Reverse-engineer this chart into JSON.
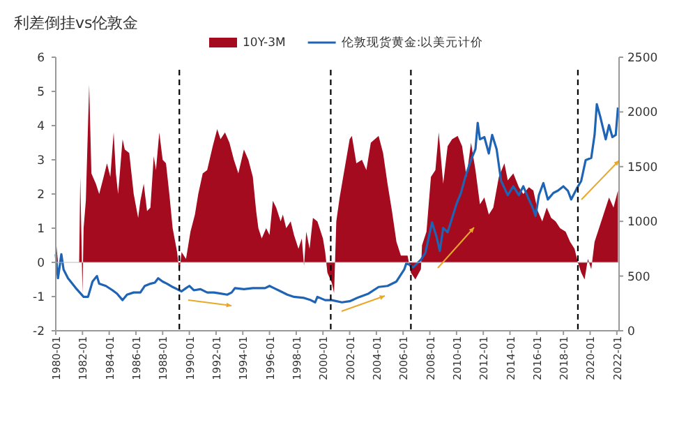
{
  "chart_data": {
    "type": "area",
    "title": "利差倒挂vs伦敦金",
    "legend": "top",
    "xlim": [
      "1980-01",
      "2022-03"
    ],
    "xticks": [
      "1980-01",
      "1982-01",
      "1984-01",
      "1986-01",
      "1988-01",
      "1990-01",
      "1992-01",
      "1994-01",
      "1996-01",
      "1998-01",
      "2000-01",
      "2002-01",
      "2004-01",
      "2006-01",
      "2008-01",
      "2010-01",
      "2012-01",
      "2014-01",
      "2016-01",
      "2018-01",
      "2020-01",
      "2022-01"
    ],
    "ylim": [
      -2,
      6
    ],
    "yticks": [
      -2,
      -1,
      0,
      1,
      2,
      3,
      4,
      5,
      6
    ],
    "y2lim": [
      0,
      2500
    ],
    "y2ticks": [
      0,
      500,
      1000,
      1500,
      2000,
      2500
    ],
    "ref_lines": [
      {
        "axis": "x",
        "value": "1989-04",
        "color": "#000000",
        "line_style": "dashed"
      },
      {
        "axis": "x",
        "value": "2000-08",
        "color": "#000000",
        "line_style": "dashed"
      },
      {
        "axis": "x",
        "value": "2006-08",
        "color": "#000000",
        "line_style": "dashed"
      },
      {
        "axis": "x",
        "value": "2019-02",
        "color": "#000000",
        "line_style": "dashed"
      }
    ],
    "series": [
      {
        "name": "10Y-3M",
        "axis": "y",
        "color": "#a50b1e",
        "x": [
          "1980-01",
          "1980-03",
          "1981-10",
          "1981-11",
          "1982-01",
          "1982-02",
          "1982-04",
          "1982-07",
          "1982-09",
          "1983-01",
          "1983-04",
          "1983-08",
          "1983-11",
          "1984-02",
          "1984-05",
          "1984-07",
          "1984-09",
          "1985-01",
          "1985-03",
          "1985-07",
          "1985-11",
          "1986-03",
          "1986-05",
          "1986-08",
          "1986-11",
          "1987-02",
          "1987-05",
          "1987-07",
          "1987-10",
          "1988-01",
          "1988-04",
          "1988-07",
          "1988-10",
          "1989-02",
          "1989-04",
          "1989-06",
          "1989-10",
          "1990-02",
          "1990-06",
          "1990-09",
          "1991-01",
          "1991-05",
          "1991-10",
          "1992-02",
          "1992-05",
          "1992-09",
          "1993-01",
          "1993-05",
          "1993-09",
          "1994-02",
          "1994-06",
          "1994-10",
          "1995-01",
          "1995-03",
          "1995-06",
          "1995-10",
          "1996-01",
          "1996-04",
          "1996-07",
          "1996-11",
          "1997-01",
          "1997-04",
          "1997-08",
          "1997-11",
          "1998-03",
          "1998-06",
          "1998-08",
          "1998-10",
          "1999-01",
          "1999-04",
          "1999-08",
          "2000-01",
          "2000-03",
          "2000-05",
          "2000-09",
          "2000-11",
          "2001-01",
          "2001-04",
          "2002-01",
          "2002-03",
          "2002-07",
          "2002-12",
          "2003-04",
          "2003-08",
          "2004-03",
          "2004-07",
          "2004-11",
          "2005-03",
          "2005-07",
          "2005-11",
          "2006-05",
          "2006-08",
          "2006-12",
          "2007-05",
          "2007-06",
          "2007-10",
          "2008-02",
          "2008-06",
          "2008-09",
          "2009-01",
          "2009-05",
          "2009-09",
          "2010-02",
          "2010-06",
          "2010-10",
          "2011-02",
          "2011-06",
          "2011-10",
          "2012-02",
          "2012-06",
          "2012-10",
          "2013-03",
          "2013-08",
          "2013-11",
          "2014-04",
          "2014-09",
          "2015-01",
          "2015-06",
          "2015-10",
          "2016-02",
          "2016-06",
          "2016-10",
          "2017-02",
          "2017-06",
          "2017-10",
          "2018-03",
          "2018-07",
          "2018-11",
          "2019-02",
          "2019-05",
          "2019-08",
          "2019-11",
          "2020-02",
          "2020-05",
          "2020-09",
          "2021-02",
          "2021-06",
          "2021-10",
          "2022-02"
        ],
        "values": [
          0.7,
          0,
          0,
          2.5,
          -0.9,
          1.0,
          1.8,
          5.2,
          2.6,
          2.3,
          2.0,
          2.5,
          2.9,
          2.5,
          3.8,
          2.6,
          2.0,
          3.6,
          3.3,
          3.2,
          2.0,
          1.3,
          1.8,
          2.3,
          1.5,
          1.6,
          3.1,
          2.7,
          3.8,
          3.0,
          2.9,
          2.0,
          1.0,
          0.3,
          -0.3,
          0.3,
          0.1,
          0.9,
          1.4,
          2.0,
          2.6,
          2.7,
          3.4,
          3.9,
          3.6,
          3.8,
          3.5,
          3.0,
          2.6,
          3.3,
          3.0,
          2.5,
          1.5,
          1.0,
          0.7,
          1.0,
          0.8,
          1.8,
          1.6,
          1.2,
          1.4,
          1.0,
          1.2,
          0.8,
          0.4,
          0.7,
          -0.1,
          0.9,
          0.4,
          1.3,
          1.2,
          0.7,
          0.3,
          -0.3,
          -0.6,
          -0.9,
          1.2,
          1.9,
          3.6,
          3.7,
          2.9,
          3.0,
          2.7,
          3.5,
          3.7,
          3.2,
          2.3,
          1.5,
          0.6,
          0.2,
          0.2,
          -0.3,
          -0.5,
          -0.2,
          0.5,
          0.9,
          2.5,
          2.7,
          3.8,
          2.3,
          3.4,
          3.6,
          3.7,
          3.4,
          2.5,
          3.5,
          2.7,
          1.7,
          1.9,
          1.4,
          1.6,
          2.5,
          2.9,
          2.4,
          2.6,
          2.2,
          2.0,
          2.2,
          2.1,
          1.5,
          1.2,
          1.6,
          1.3,
          1.2,
          1.0,
          0.9,
          0.6,
          0.4,
          0.0,
          -0.3,
          -0.5,
          0.1,
          -0.2,
          0.6,
          1.0,
          1.5,
          1.9,
          1.6,
          2.1
        ]
      },
      {
        "name": "伦敦现货黄金:以美元计价",
        "type": "line",
        "axis": "y2",
        "color": "#1f64b4",
        "x": [
          "1980-01",
          "1980-03",
          "1980-06",
          "1980-08",
          "1980-12",
          "1981-07",
          "1982-02",
          "1982-06",
          "1982-10",
          "1983-02",
          "1983-04",
          "1983-10",
          "1984-04",
          "1984-08",
          "1985-01",
          "1985-05",
          "1985-11",
          "1986-05",
          "1986-09",
          "1987-02",
          "1987-06",
          "1987-09",
          "1988-01",
          "1988-05",
          "1988-10",
          "1989-02",
          "1989-06",
          "1989-10",
          "1990-01",
          "1990-05",
          "1990-11",
          "1991-05",
          "1991-11",
          "1992-05",
          "1992-11",
          "1993-03",
          "1993-06",
          "1994-02",
          "1994-10",
          "1995-09",
          "1996-01",
          "1996-05",
          "1996-11",
          "1997-05",
          "1997-11",
          "1998-08",
          "1999-02",
          "1999-06",
          "1999-08",
          "2000-03",
          "2000-09",
          "2001-06",
          "2002-01",
          "2002-10",
          "2003-06",
          "2004-03",
          "2004-11",
          "2005-07",
          "2006-02",
          "2006-04",
          "2006-10",
          "2007-05",
          "2007-09",
          "2008-01",
          "2008-03",
          "2008-07",
          "2008-10",
          "2009-01",
          "2009-05",
          "2009-09",
          "2010-01",
          "2010-05",
          "2010-09",
          "2011-02",
          "2011-06",
          "2011-08",
          "2011-10",
          "2012-02",
          "2012-06",
          "2012-09",
          "2013-01",
          "2013-05",
          "2013-11",
          "2014-04",
          "2014-09",
          "2015-01",
          "2015-06",
          "2015-10",
          "2015-12",
          "2016-03",
          "2016-07",
          "2016-11",
          "2017-04",
          "2017-08",
          "2018-01",
          "2018-05",
          "2018-08",
          "2019-01",
          "2019-05",
          "2019-09",
          "2020-02",
          "2020-05",
          "2020-07",
          "2020-10",
          "2021-03",
          "2021-06",
          "2021-09",
          "2021-12",
          "2022-02"
        ],
        "values": [
          700,
          480,
          700,
          560,
          480,
          390,
          310,
          310,
          450,
          500,
          430,
          410,
          370,
          340,
          280,
          330,
          350,
          350,
          410,
          430,
          440,
          480,
          450,
          430,
          400,
          380,
          360,
          390,
          410,
          370,
          380,
          350,
          350,
          340,
          330,
          350,
          390,
          380,
          390,
          390,
          410,
          390,
          360,
          330,
          310,
          300,
          280,
          260,
          310,
          280,
          280,
          260,
          270,
          310,
          340,
          400,
          410,
          450,
          560,
          620,
          580,
          650,
          710,
          900,
          990,
          860,
          730,
          940,
          900,
          1030,
          1160,
          1260,
          1410,
          1560,
          1660,
          1900,
          1750,
          1770,
          1620,
          1790,
          1660,
          1370,
          1240,
          1320,
          1240,
          1320,
          1200,
          1110,
          1050,
          1240,
          1350,
          1200,
          1260,
          1280,
          1320,
          1280,
          1200,
          1300,
          1370,
          1560,
          1580,
          1790,
          2070,
          1960,
          1750,
          1880,
          1770,
          1790,
          2040
        ]
      }
    ]
  }
}
